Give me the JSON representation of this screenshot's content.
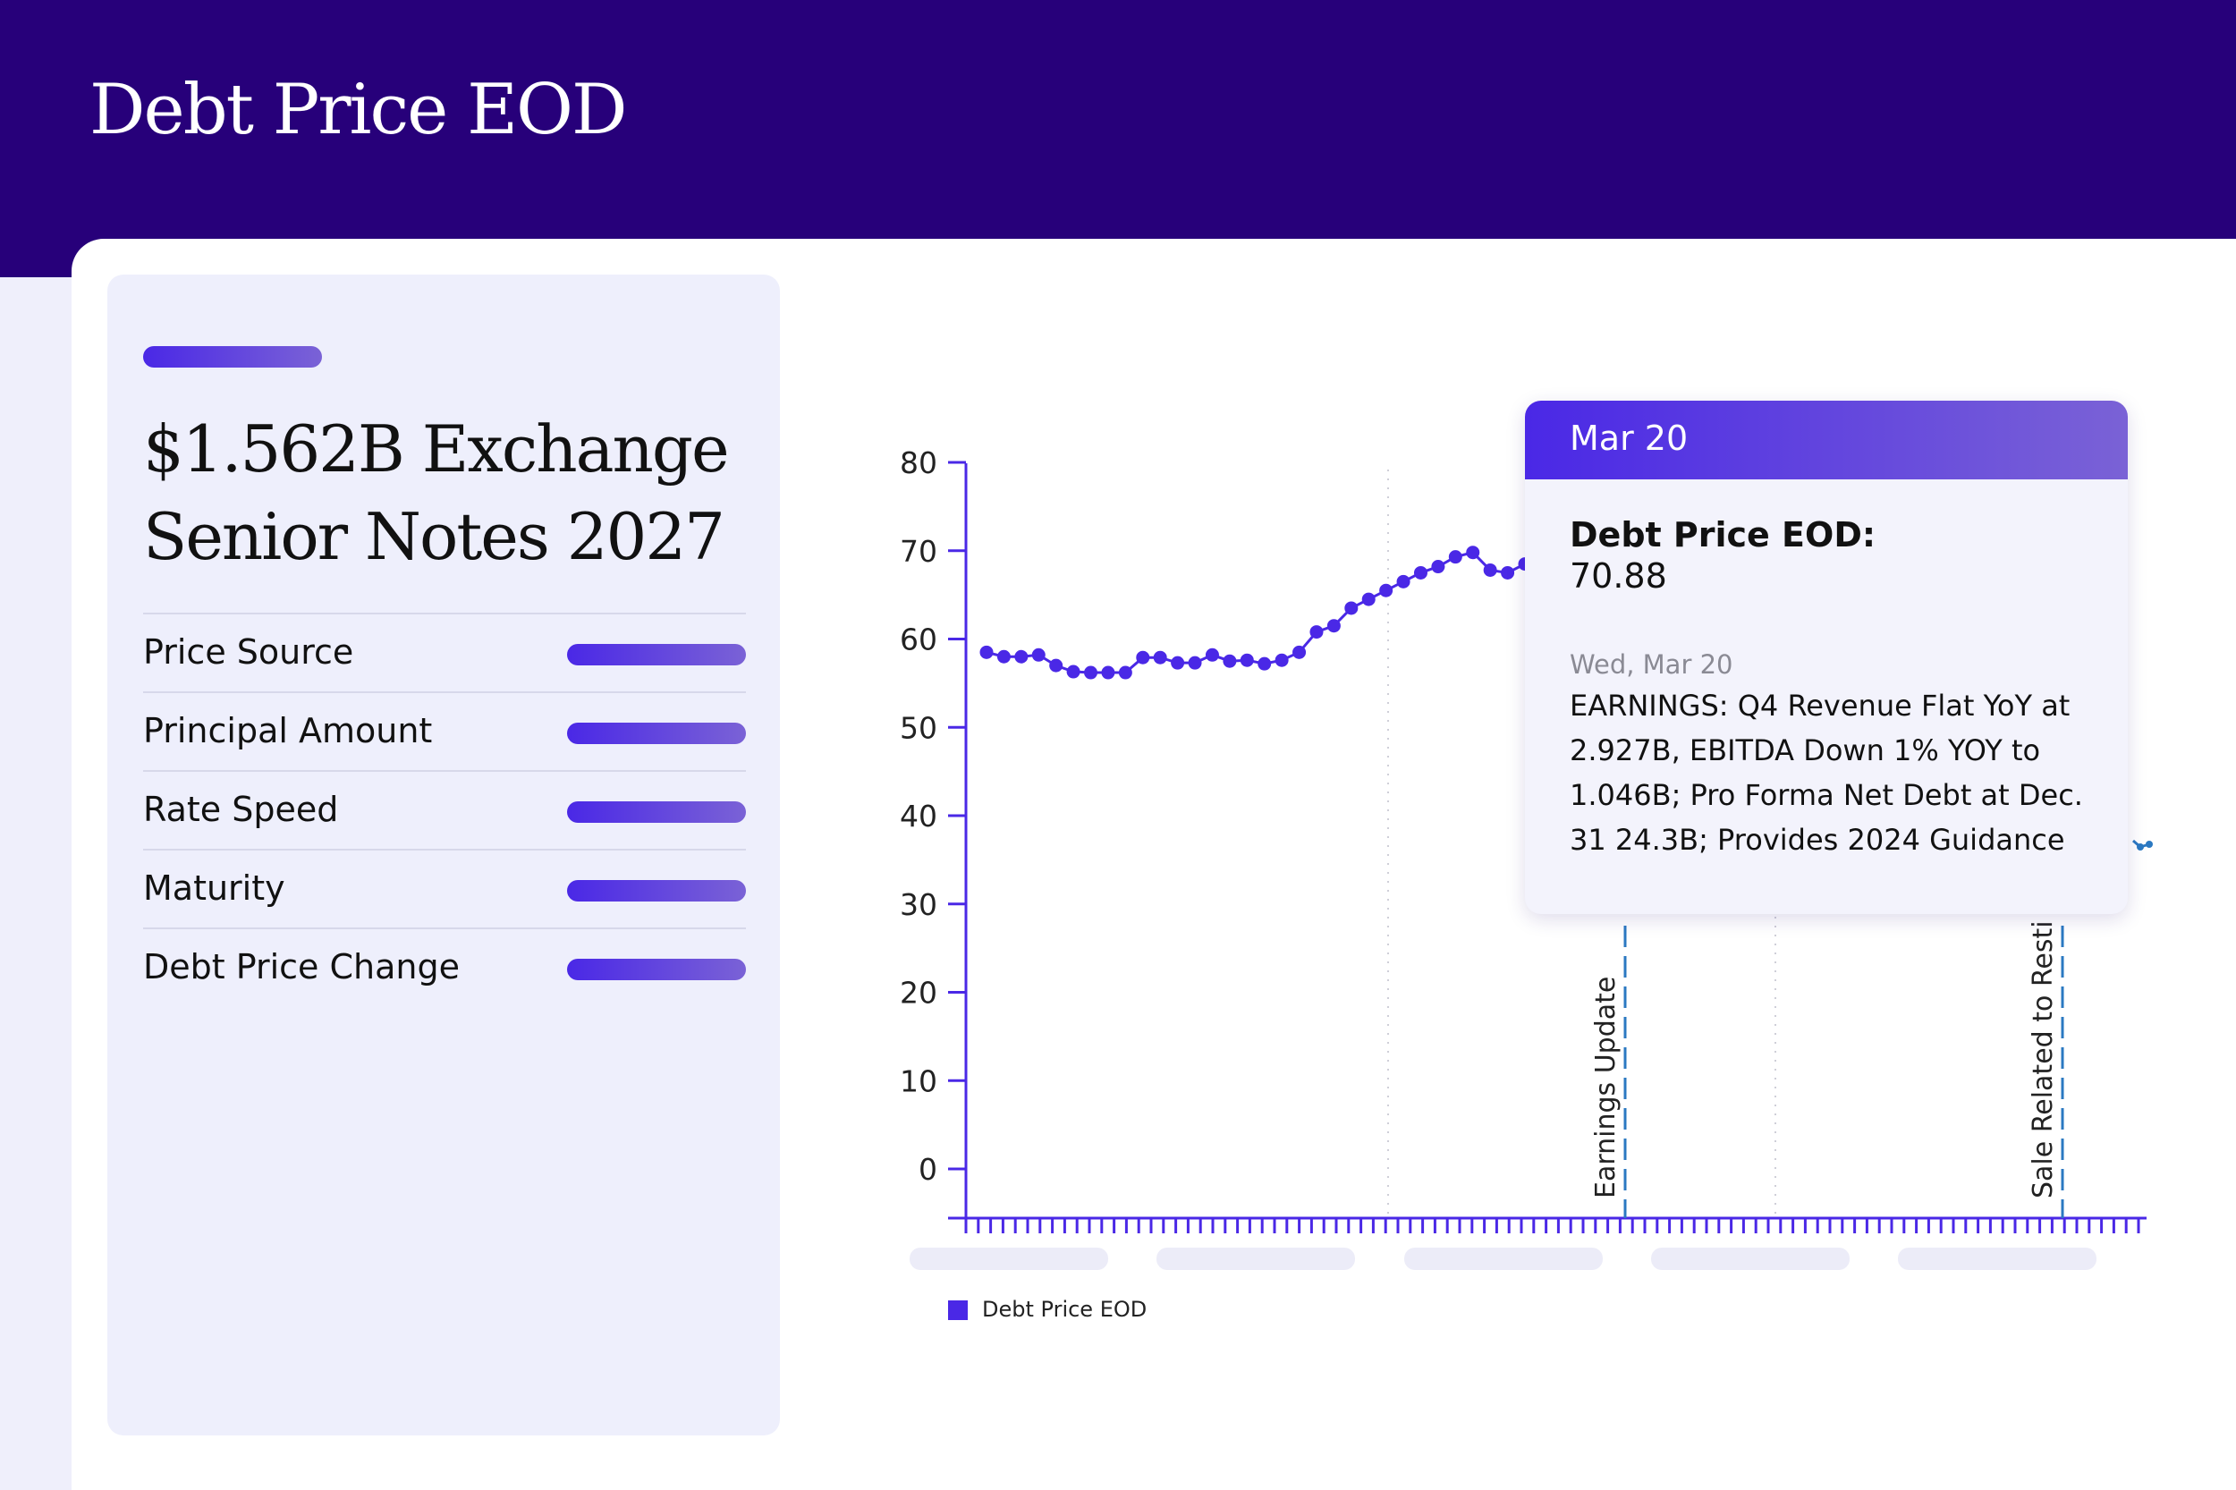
{
  "header": {
    "title": "Debt Price EOD"
  },
  "panel": {
    "title": "$1.562B Exchange Senior Notes 2027",
    "attributes": [
      {
        "label": "Price Source"
      },
      {
        "label": "Principal Amount"
      },
      {
        "label": "Rate Speed"
      },
      {
        "label": "Maturity"
      },
      {
        "label": "Debt Price Change"
      }
    ]
  },
  "chart_data": {
    "type": "line",
    "ylim": [
      0,
      80
    ],
    "yticks": [
      "80",
      "70",
      "60",
      "50",
      "40",
      "30",
      "20",
      "10",
      "0"
    ],
    "series": [
      {
        "name": "Debt Price EOD",
        "color": "#4a28e6",
        "values": [
          58.5,
          58,
          58,
          58.2,
          57,
          56.3,
          56.2,
          56.2,
          56.2,
          57.9,
          57.9,
          57.3,
          57.3,
          58.2,
          57.5,
          57.6,
          57.2,
          57.6,
          58.5,
          60.8,
          61.5,
          63.5,
          64.5,
          65.5,
          66.5,
          67.5,
          68.2,
          69.3,
          69.8,
          67.8,
          67.5,
          68.5
        ]
      }
    ],
    "events": [
      {
        "label": "Earnings Update"
      },
      {
        "label": "Sale Related to Resti"
      }
    ],
    "legend_position": "bottom-left"
  },
  "tooltip": {
    "date": "Mar 20",
    "metric_label": "Debt Price EOD:",
    "metric_value": "70.88",
    "event_date": "Wed, Mar 20",
    "event_text": "EARNINGS: Q4 Revenue Flat YoY at 2.927B, EBITDA Down 1% YOY to 1.046B; Pro Forma Net Debt at Dec. 31 24.3B; Provides 2024 Guidance"
  },
  "legend": {
    "label": "Debt Price EOD"
  },
  "colors": {
    "header": "#27007a",
    "accent": "#4a28e6",
    "event_line": "#2b79c2"
  }
}
